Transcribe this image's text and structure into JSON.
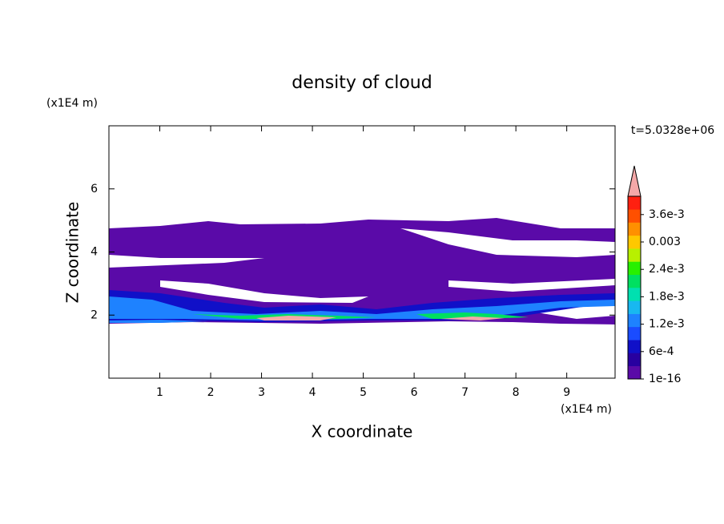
{
  "chart_data": {
    "type": "contour",
    "title": "density of cloud",
    "x_label": "X coordinate",
    "y_label": "Z coordinate",
    "x_unit": "(x1E4 m)",
    "y_unit": "(x1E4 m)",
    "time_label": "t=5.0328e+06",
    "xlim": [
      0,
      9.95
    ],
    "xticks": [
      1,
      2,
      3,
      4,
      5,
      6,
      7,
      8,
      9
    ],
    "ylim": [
      0,
      8
    ],
    "yticks": [
      2,
      4,
      6
    ],
    "colorbar": {
      "clim": [
        1e-16,
        0.004
      ],
      "ticks": [
        1e-16,
        {
          "value": 0.0006,
          "label": "6e-4"
        },
        {
          "value": 0.0012,
          "label": "1.2e-3"
        },
        {
          "value": 0.0018,
          "label": "1.8e-3"
        },
        {
          "value": 0.0024,
          "label": "2.4e-3"
        },
        0.003,
        {
          "value": 0.0036,
          "label": "3.6e-3"
        }
      ],
      "colors": [
        "#5a0aa8",
        "#2800a0",
        "#1010c8",
        "#1a4cff",
        "#1e82ff",
        "#18b8f0",
        "#00e0b0",
        "#00e060",
        "#28f000",
        "#b8f000",
        "#ffc800",
        "#ff9000",
        "#ff5000",
        "#ff2010"
      ],
      "extend_color": "#f4a8a8"
    }
  }
}
